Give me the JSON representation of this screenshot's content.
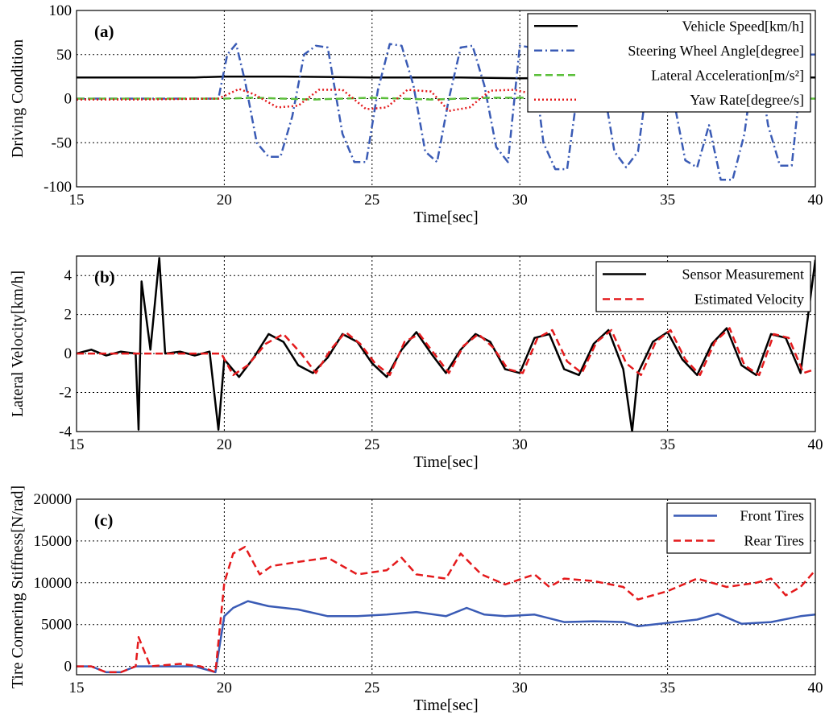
{
  "figure": {
    "panels": [
      {
        "id": "a",
        "panel_label": "(a)",
        "xlabel": "Time[sec]",
        "ylabel": "Driving Condition",
        "xticks": [
          "15",
          "20",
          "25",
          "30",
          "35",
          "40"
        ],
        "yticks": [
          "100",
          "50",
          "0",
          "-50",
          "-100"
        ],
        "legend": [
          "Vehicle Speed[km/h]",
          "Steering Wheel Angle[degree]",
          "Lateral Acceleration[m/s²]",
          "Yaw Rate[degree/s]"
        ]
      },
      {
        "id": "b",
        "panel_label": "(b)",
        "xlabel": "Time[sec]",
        "ylabel": "Lateral Velocity[km/h]",
        "xticks": [
          "15",
          "20",
          "25",
          "30",
          "35",
          "40"
        ],
        "yticks": [
          "4",
          "2",
          "0",
          "-2",
          "-4"
        ],
        "legend": [
          "Sensor Measurement",
          "Estimated Velocity"
        ]
      },
      {
        "id": "c",
        "panel_label": "(c)",
        "xlabel": "Time[sec]",
        "ylabel": "Tire Cornering Stiffness[N/rad]",
        "xticks": [
          "15",
          "20",
          "25",
          "30",
          "35",
          "40"
        ],
        "yticks": [
          "20000",
          "15000",
          "10000",
          "5000",
          "0"
        ],
        "legend": [
          "Front Tires",
          "Rear Tires"
        ]
      }
    ]
  },
  "chart_data": [
    {
      "type": "line",
      "panel": "(a)",
      "xlabel": "Time[sec]",
      "ylabel": "Driving Condition",
      "xlim": [
        15,
        40
      ],
      "ylim": [
        -100,
        100
      ],
      "grid": true,
      "legend_position": "top-right",
      "series": [
        {
          "name": "Vehicle Speed[km/h]",
          "color": "#000000",
          "style": "solid",
          "x": [
            15,
            17,
            19,
            20,
            22,
            25,
            28,
            30,
            33,
            35,
            38,
            40
          ],
          "y": [
            24,
            24,
            24,
            25,
            25,
            24,
            24,
            23,
            24,
            24,
            24,
            24
          ]
        },
        {
          "name": "Steering Wheel Angle[degree]",
          "color": "#3a5bb5",
          "style": "dashdot",
          "x": [
            15,
            19.8,
            20.1,
            20.4,
            20.7,
            21.1,
            21.5,
            21.9,
            22.3,
            22.7,
            23.1,
            23.5,
            24.0,
            24.4,
            24.8,
            25.2,
            25.6,
            26.0,
            26.4,
            26.8,
            27.2,
            27.6,
            28.0,
            28.4,
            28.8,
            29.2,
            29.6,
            30.0,
            30.4,
            30.8,
            31.2,
            31.6,
            32.0,
            32.4,
            32.8,
            33.2,
            33.6,
            34.0,
            34.4,
            34.8,
            35.2,
            35.6,
            36.0,
            36.4,
            36.8,
            37.2,
            37.6,
            38.0,
            38.4,
            38.8,
            39.2,
            39.6,
            40.0
          ],
          "y": [
            0,
            0,
            50,
            62,
            20,
            -50,
            -66,
            -66,
            -20,
            50,
            60,
            58,
            -40,
            -72,
            -72,
            10,
            62,
            60,
            15,
            -60,
            -72,
            0,
            58,
            60,
            15,
            -55,
            -72,
            60,
            58,
            -50,
            -80,
            -80,
            20,
            60,
            20,
            -60,
            -78,
            -60,
            40,
            60,
            0,
            -70,
            -78,
            -30,
            -92,
            -92,
            -40,
            60,
            -30,
            -76,
            -76,
            50,
            50
          ]
        },
        {
          "name": "Lateral Acceleration[m/s²]",
          "color": "#5bbf3a",
          "style": "dashed",
          "x": [
            15,
            20,
            21,
            22,
            23,
            24,
            25,
            26,
            27,
            28,
            29,
            30,
            35,
            40
          ],
          "y": [
            0,
            0,
            1,
            0,
            -1,
            0,
            1,
            0,
            -1,
            0,
            1,
            1,
            0,
            0
          ]
        },
        {
          "name": "Yaw Rate[degree/s]",
          "color": "#e41a1c",
          "style": "dotted",
          "x": [
            15,
            17,
            19.8,
            20.5,
            21.0,
            21.8,
            22.5,
            23.2,
            24.0,
            24.8,
            25.5,
            26.2,
            27.0,
            27.6,
            28.3,
            29.0,
            29.8,
            30.5
          ],
          "y": [
            -1,
            -1,
            0,
            11,
            5,
            -10,
            -8,
            10,
            10,
            -12,
            -10,
            10,
            8,
            -14,
            -10,
            9,
            10,
            5
          ]
        }
      ]
    },
    {
      "type": "line",
      "panel": "(b)",
      "xlabel": "Time[sec]",
      "ylabel": "Lateral Velocity[km/h]",
      "xlim": [
        15,
        40
      ],
      "ylim": [
        -4,
        5
      ],
      "grid": true,
      "legend_position": "top-right",
      "series": [
        {
          "name": "Sensor Measurement",
          "color": "#000000",
          "style": "solid",
          "x": [
            15,
            15.5,
            16,
            16.5,
            17,
            17.1,
            17.2,
            17.5,
            17.8,
            18,
            18.5,
            19,
            19.5,
            19.8,
            20,
            20.5,
            21,
            21.5,
            22,
            22.5,
            23,
            23.5,
            24,
            24.5,
            25,
            25.5,
            26,
            26.5,
            27,
            27.5,
            28,
            28.5,
            29,
            29.5,
            30,
            30.5,
            31,
            31.5,
            32,
            32.5,
            33,
            33.5,
            33.8,
            34,
            34.5,
            35,
            35.5,
            36,
            36.5,
            37,
            37.5,
            38,
            38.5,
            39,
            39.5,
            40
          ],
          "y": [
            0,
            0.2,
            -0.1,
            0.1,
            0,
            -3.9,
            3.7,
            0.2,
            4.9,
            0,
            0.1,
            -0.1,
            0.1,
            -3.9,
            -0.3,
            -1.2,
            -0.2,
            1.0,
            0.6,
            -0.6,
            -1.0,
            -0.2,
            1.0,
            0.6,
            -0.5,
            -1.2,
            0.2,
            1.1,
            0,
            -1.0,
            0.2,
            1.0,
            0.6,
            -0.8,
            -1.0,
            0.8,
            1.0,
            -0.8,
            -1.1,
            0.5,
            1.2,
            -0.8,
            -4.0,
            -1.0,
            0.6,
            1.1,
            -0.3,
            -1.1,
            0.5,
            1.3,
            -0.6,
            -1.1,
            1.0,
            0.8,
            -1.0,
            4.8
          ]
        },
        {
          "name": "Estimated Velocity",
          "color": "#e41a1c",
          "style": "dashed",
          "x": [
            15,
            19.9,
            20.3,
            20.8,
            21.4,
            22.0,
            22.6,
            23.1,
            23.6,
            24.1,
            24.6,
            25.1,
            25.6,
            26.1,
            26.6,
            27.1,
            27.6,
            28.1,
            28.6,
            29.1,
            29.6,
            30.1,
            30.6,
            31.1,
            31.6,
            32.1,
            32.6,
            33.1,
            33.6,
            34.1,
            34.6,
            35.1,
            35.6,
            36.1,
            36.6,
            37.1,
            37.6,
            38.1,
            38.6,
            39.1,
            39.6,
            40.0
          ],
          "y": [
            0,
            0,
            -1.1,
            -0.6,
            0.5,
            1.0,
            0,
            -1.0,
            0.2,
            1.1,
            0.5,
            -0.5,
            -1.1,
            0.6,
            1.0,
            0,
            -1.0,
            0.4,
            1.0,
            0.3,
            -0.8,
            -1.0,
            0.8,
            1.2,
            -0.4,
            -1.0,
            0.6,
            1.2,
            -0.5,
            -1.1,
            0.6,
            1.2,
            -0.3,
            -1.1,
            0.6,
            1.3,
            -0.6,
            -1.1,
            1.0,
            0.8,
            -1.0,
            -0.8
          ]
        }
      ]
    },
    {
      "type": "line",
      "panel": "(c)",
      "xlabel": "Time[sec]",
      "ylabel": "Tire Cornering Stiffness[N/rad]",
      "xlim": [
        15,
        40
      ],
      "ylim": [
        -1000,
        20000
      ],
      "grid": true,
      "legend_position": "top-right",
      "series": [
        {
          "name": "Front Tires",
          "color": "#3a5bb5",
          "style": "solid",
          "x": [
            15,
            15.5,
            16,
            16.5,
            17,
            17.5,
            18,
            19,
            19.7,
            20.0,
            20.3,
            20.8,
            21.5,
            22.5,
            23.5,
            24.5,
            25.5,
            26.5,
            27.5,
            28.2,
            28.8,
            29.5,
            30.5,
            31.5,
            32.5,
            33.5,
            34.0,
            35.0,
            36.0,
            36.7,
            37.5,
            38.5,
            39.5,
            40.0
          ],
          "y": [
            0,
            0,
            -700,
            -700,
            0,
            0,
            0,
            0,
            -700,
            6000,
            7000,
            7800,
            7200,
            6800,
            6000,
            6000,
            6200,
            6500,
            6000,
            7000,
            6200,
            6000,
            6200,
            5300,
            5400,
            5300,
            4800,
            5200,
            5600,
            6300,
            5100,
            5300,
            6000,
            6200
          ]
        },
        {
          "name": "Rear Tires",
          "color": "#e41a1c",
          "style": "dashed",
          "x": [
            15,
            15.5,
            16,
            16.5,
            17,
            17.1,
            17.5,
            18.5,
            19.2,
            19.7,
            20.0,
            20.3,
            20.7,
            21.2,
            21.6,
            22.5,
            23.5,
            24.5,
            25.5,
            26.0,
            26.5,
            27.5,
            28.0,
            28.7,
            29.5,
            30.5,
            31.0,
            31.5,
            32.5,
            33.5,
            34.0,
            35.0,
            36.0,
            37.0,
            38.0,
            38.5,
            39.0,
            39.5,
            40.0
          ],
          "y": [
            0,
            0,
            -700,
            -700,
            0,
            3500,
            0,
            300,
            0,
            -700,
            10000,
            13500,
            14300,
            11000,
            12000,
            12500,
            13000,
            11000,
            11500,
            13000,
            11000,
            10500,
            13500,
            11000,
            9800,
            11000,
            9500,
            10500,
            10200,
            9500,
            8000,
            9000,
            10500,
            9500,
            10000,
            10500,
            8500,
            9500,
            11500
          ]
        }
      ]
    }
  ]
}
